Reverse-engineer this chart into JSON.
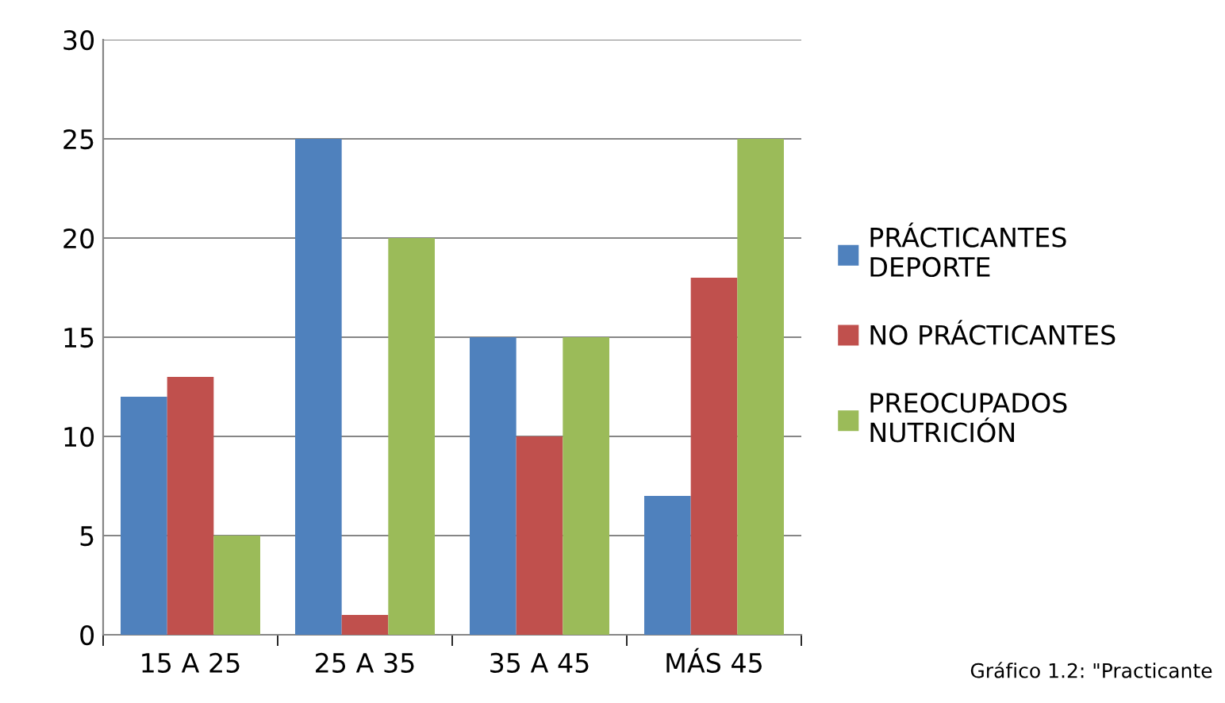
{
  "chart_data": {
    "type": "bar",
    "categories": [
      "15 A 25",
      "25 A 35",
      "35 A 45",
      "MÁS 45"
    ],
    "series": [
      {
        "name": "PRÁCTICANTES\nDEPORTE",
        "color": "#4f81bd",
        "values": [
          12,
          25,
          15,
          7
        ]
      },
      {
        "name": "NO PRÁCTICANTES",
        "color": "#c0504d",
        "values": [
          13,
          1,
          10,
          18
        ]
      },
      {
        "name": "PREOCUPADOS\nNUTRICIÓN",
        "color": "#9bbb59",
        "values": [
          5,
          20,
          15,
          25
        ]
      }
    ],
    "ylim": [
      0,
      30
    ],
    "yticks": [
      0,
      5,
      10,
      15,
      20,
      25,
      30
    ],
    "grid": "y",
    "legend": "right",
    "annotations": [
      "Gráfico 1.2: \"Practicante"
    ]
  }
}
